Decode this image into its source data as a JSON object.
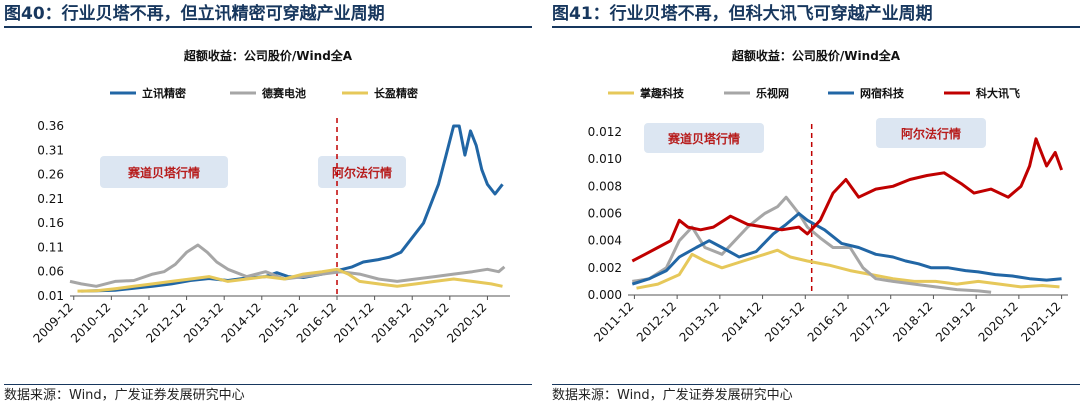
{
  "source_text": "数据来源：Wind，广发证券发展研究中心",
  "colors": {
    "title": "#17375e",
    "blue": "#2166a5",
    "gray": "#a6a6a6",
    "yellow": "#e6c85a",
    "red": "#c00000",
    "era_box": "#dce6f2",
    "era_text": "#b71c1c"
  },
  "chart_data": [
    {
      "type": "line",
      "figure_title": "图40：行业贝塔不再，但立讯精密可穿越产业周期",
      "title": "超额收益：公司股价/Wind全A",
      "legend_position": "top",
      "x_tick_labels": [
        "2009-12",
        "2010-12",
        "2011-12",
        "2012-12",
        "2013-12",
        "2014-12",
        "2015-12",
        "2016-12",
        "2017-12",
        "2018-12",
        "2019-12",
        "2020-12"
      ],
      "y_tick_labels": [
        "0.36",
        "0.31",
        "0.26",
        "0.21",
        "0.16",
        "0.11",
        "0.06",
        "0.01"
      ],
      "ylim": [
        0.01,
        0.36
      ],
      "divider_x": 2016.9,
      "annotations": [
        "赛道贝塔行情",
        "阿尔法行情"
      ],
      "series": [
        {
          "name": "立讯精密",
          "color": "#2166a5",
          "x": [
            2010.1,
            2010.5,
            2011.0,
            2011.5,
            2012.0,
            2012.5,
            2013.0,
            2013.5,
            2014.0,
            2014.5,
            2015.0,
            2015.3,
            2015.6,
            2016.0,
            2016.5,
            2016.9,
            2017.3,
            2017.6,
            2018.0,
            2018.3,
            2018.6,
            2018.9,
            2019.2,
            2019.4,
            2019.6,
            2019.8,
            2020.0,
            2020.15,
            2020.3,
            2020.45,
            2020.6,
            2020.75,
            2020.9,
            2021.1,
            2021.3
          ],
          "y": [
            0.02,
            0.021,
            0.022,
            0.026,
            0.03,
            0.035,
            0.042,
            0.046,
            0.042,
            0.047,
            0.05,
            0.058,
            0.05,
            0.048,
            0.055,
            0.062,
            0.07,
            0.08,
            0.085,
            0.09,
            0.1,
            0.13,
            0.16,
            0.2,
            0.24,
            0.3,
            0.36,
            0.36,
            0.3,
            0.35,
            0.32,
            0.27,
            0.24,
            0.22,
            0.24
          ]
        },
        {
          "name": "德赛电池",
          "color": "#a6a6a6",
          "x": [
            2009.8,
            2010.1,
            2010.5,
            2011.0,
            2011.5,
            2012.0,
            2012.3,
            2012.6,
            2012.9,
            2013.2,
            2013.45,
            2013.7,
            2014.0,
            2014.5,
            2015.0,
            2015.5,
            2016.0,
            2016.5,
            2017.0,
            2017.5,
            2018.0,
            2018.5,
            2019.0,
            2019.5,
            2020.0,
            2020.5,
            2020.9,
            2021.2,
            2021.35
          ],
          "y": [
            0.04,
            0.035,
            0.03,
            0.04,
            0.042,
            0.055,
            0.06,
            0.075,
            0.1,
            0.115,
            0.1,
            0.08,
            0.065,
            0.05,
            0.06,
            0.045,
            0.05,
            0.055,
            0.06,
            0.055,
            0.045,
            0.04,
            0.045,
            0.05,
            0.055,
            0.06,
            0.065,
            0.06,
            0.07
          ]
        },
        {
          "name": "长盈精密",
          "color": "#e6c85a",
          "x": [
            2010.0,
            2010.5,
            2011.0,
            2011.5,
            2012.0,
            2012.5,
            2013.0,
            2013.5,
            2014.0,
            2014.5,
            2015.0,
            2015.5,
            2016.0,
            2016.5,
            2016.9,
            2017.2,
            2017.5,
            2018.0,
            2018.5,
            2019.0,
            2019.5,
            2020.0,
            2020.5,
            2021.0,
            2021.3
          ],
          "y": [
            0.02,
            0.021,
            0.025,
            0.03,
            0.035,
            0.04,
            0.045,
            0.05,
            0.04,
            0.045,
            0.05,
            0.045,
            0.055,
            0.06,
            0.065,
            0.055,
            0.04,
            0.035,
            0.03,
            0.035,
            0.04,
            0.045,
            0.04,
            0.035,
            0.03
          ]
        }
      ]
    },
    {
      "type": "line",
      "figure_title": "图41：行业贝塔不再，但科大讯飞可穿越产业周期",
      "title": "超额收益：公司股价/Wind全A",
      "legend_position": "top",
      "x_tick_labels": [
        "2011-12",
        "2012-12",
        "2013-12",
        "2014-12",
        "2015-12",
        "2016-12",
        "2017-12",
        "2018-12",
        "2019-12",
        "2020-12",
        "2021-12"
      ],
      "y_tick_labels": [
        "0.012",
        "0.010",
        "0.008",
        "0.006",
        "0.004",
        "0.002",
        "0.000"
      ],
      "ylim": [
        0,
        0.012
      ],
      "divider_x": 2016.1,
      "annotations": [
        "赛道贝塔行情",
        "阿尔法行情"
      ],
      "series": [
        {
          "name": "掌趣科技",
          "color": "#e6c85a",
          "x": [
            2012.0,
            2012.5,
            2013.0,
            2013.3,
            2013.6,
            2014.0,
            2014.5,
            2015.0,
            2015.3,
            2015.6,
            2016.0,
            2016.5,
            2017.0,
            2017.5,
            2018.0,
            2018.5,
            2019.0,
            2019.5,
            2020.0,
            2020.5,
            2021.0,
            2021.5,
            2021.9
          ],
          "y": [
            0.0005,
            0.0008,
            0.0015,
            0.003,
            0.0025,
            0.002,
            0.0025,
            0.003,
            0.0033,
            0.0028,
            0.0025,
            0.0022,
            0.0018,
            0.0015,
            0.0012,
            0.001,
            0.001,
            0.0008,
            0.001,
            0.0008,
            0.0006,
            0.0007,
            0.0006
          ]
        },
        {
          "name": "乐视网",
          "color": "#a6a6a6",
          "x": [
            2011.9,
            2012.3,
            2012.7,
            2013.0,
            2013.3,
            2013.6,
            2014.0,
            2014.3,
            2014.6,
            2015.0,
            2015.3,
            2015.5,
            2015.8,
            2016.0,
            2016.3,
            2016.6,
            2017.0,
            2017.3,
            2017.6,
            2018.0,
            2018.5,
            2019.0,
            2019.5,
            2020.0,
            2020.3
          ],
          "y": [
            0.001,
            0.0012,
            0.002,
            0.004,
            0.005,
            0.0035,
            0.003,
            0.004,
            0.005,
            0.006,
            0.0065,
            0.0072,
            0.006,
            0.005,
            0.0042,
            0.0035,
            0.0035,
            0.002,
            0.0012,
            0.001,
            0.0008,
            0.0006,
            0.0004,
            0.0003,
            0.0002
          ]
        },
        {
          "name": "网宿科技",
          "color": "#2166a5",
          "x": [
            2011.9,
            2012.3,
            2012.7,
            2013.0,
            2013.4,
            2013.7,
            2014.0,
            2014.4,
            2014.8,
            2015.2,
            2015.5,
            2015.8,
            2016.0,
            2016.4,
            2016.8,
            2017.2,
            2017.6,
            2018.0,
            2018.3,
            2018.6,
            2018.9,
            2019.3,
            2019.7,
            2020.0,
            2020.4,
            2020.8,
            2021.2,
            2021.6,
            2021.95
          ],
          "y": [
            0.0008,
            0.0012,
            0.0018,
            0.0028,
            0.0035,
            0.004,
            0.0035,
            0.0028,
            0.0032,
            0.0045,
            0.0052,
            0.006,
            0.0055,
            0.0048,
            0.0038,
            0.0035,
            0.003,
            0.0028,
            0.0025,
            0.0023,
            0.002,
            0.002,
            0.0018,
            0.0017,
            0.0015,
            0.0014,
            0.0012,
            0.0011,
            0.0012
          ]
        },
        {
          "name": "科大讯飞",
          "color": "#c00000",
          "x": [
            2011.9,
            2012.2,
            2012.5,
            2012.8,
            2013.0,
            2013.2,
            2013.5,
            2013.8,
            2014.2,
            2014.6,
            2015.0,
            2015.4,
            2015.8,
            2016.0,
            2016.3,
            2016.6,
            2016.9,
            2017.2,
            2017.6,
            2018.0,
            2018.4,
            2018.8,
            2019.2,
            2019.6,
            2019.9,
            2020.3,
            2020.7,
            2021.0,
            2021.2,
            2021.35,
            2021.6,
            2021.8,
            2021.95
          ],
          "y": [
            0.0025,
            0.003,
            0.0035,
            0.004,
            0.0055,
            0.005,
            0.0048,
            0.005,
            0.0058,
            0.0052,
            0.005,
            0.0048,
            0.005,
            0.0045,
            0.0055,
            0.0075,
            0.0085,
            0.0072,
            0.0078,
            0.008,
            0.0085,
            0.0088,
            0.009,
            0.0082,
            0.0075,
            0.0078,
            0.0072,
            0.008,
            0.0095,
            0.0115,
            0.0095,
            0.0105,
            0.0092
          ]
        }
      ]
    }
  ]
}
